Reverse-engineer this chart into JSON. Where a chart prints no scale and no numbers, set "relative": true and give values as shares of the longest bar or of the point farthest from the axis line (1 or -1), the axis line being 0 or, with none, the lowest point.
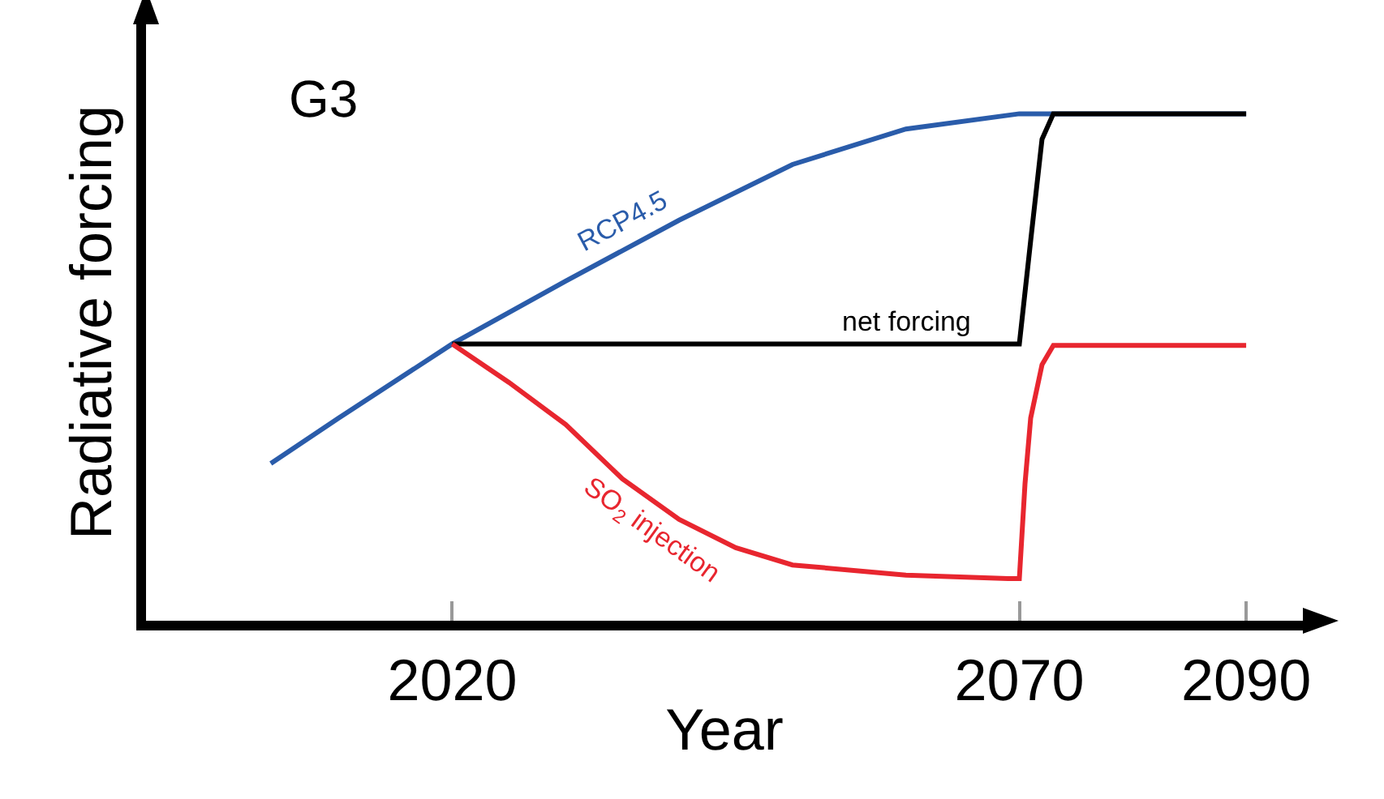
{
  "chart_data": {
    "type": "line",
    "relative": true,
    "xlabel": "Year",
    "ylabel": "Radiative forcing",
    "xlim": [
      1993,
      2095
    ],
    "xticks": [
      2020,
      2070,
      2090
    ],
    "legend": false,
    "marker": "none",
    "line_style": "solid",
    "series": [
      {
        "name": "RCP4.5",
        "color": "#2a5caa",
        "x": [
          2004,
          2010,
          2020,
          2030,
          2040,
          2050,
          2060,
          2070,
          2080,
          2090
        ],
        "values": [
          0.31,
          0.4,
          0.546,
          0.67,
          0.79,
          0.9,
          0.97,
          1.0,
          1.0,
          1.0
        ]
      },
      {
        "name": "net forcing",
        "color": "#000000",
        "x": [
          2020,
          2070,
          2071,
          2072,
          2073,
          2090
        ],
        "values": [
          0.546,
          0.546,
          0.75,
          0.95,
          1.0,
          1.0
        ]
      },
      {
        "name": "SO$_{2}$ injection",
        "color": "#e8262f",
        "x": [
          2020,
          2025,
          2030,
          2035,
          2040,
          2045,
          2050,
          2060,
          2069,
          2070,
          2070.5,
          2071,
          2072,
          2073,
          2090
        ],
        "values": [
          0.546,
          0.47,
          0.387,
          0.28,
          0.2,
          0.144,
          0.11,
          0.09,
          0.083,
          0.083,
          0.27,
          0.4,
          0.505,
          0.543,
          0.543
        ]
      }
    ],
    "annotations": [
      "G3"
    ]
  }
}
